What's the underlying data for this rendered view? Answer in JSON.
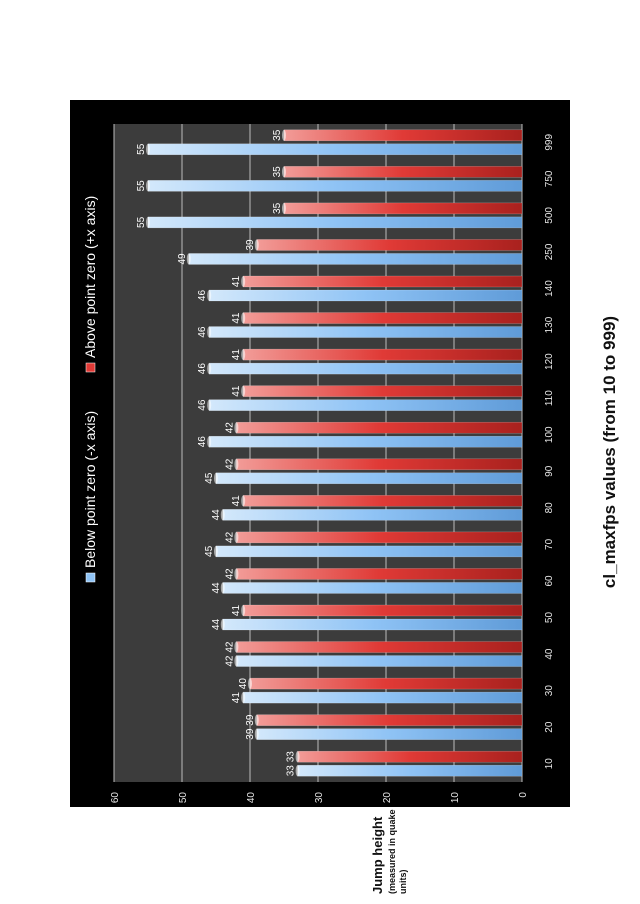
{
  "chart_data": {
    "type": "bar",
    "orientation": "horizontal-bars (page rotated 90 degrees)",
    "title": "cl_maxfps values (from 10 to 999)",
    "ylabel": "Jump height",
    "ylabel_note": "(measured in quake units)",
    "ylim": [
      0,
      60
    ],
    "yticks": [
      0,
      10,
      20,
      30,
      40,
      50,
      60
    ],
    "grid": true,
    "legend_position": "top",
    "categories": [
      "10",
      "20",
      "30",
      "40",
      "50",
      "60",
      "70",
      "80",
      "90",
      "100",
      "110",
      "120",
      "130",
      "140",
      "250",
      "500",
      "750",
      "999"
    ],
    "series": [
      {
        "name": "Below point zero (-x axis)",
        "color": "#8fc3f5",
        "values": [
          33,
          39,
          41,
          42,
          44,
          44,
          45,
          44,
          45,
          46,
          46,
          46,
          46,
          46,
          49,
          55,
          55,
          55
        ]
      },
      {
        "name": "Above point zero (+x axis)",
        "color": "#e03a36",
        "values": [
          33,
          39,
          40,
          42,
          41,
          42,
          42,
          41,
          42,
          42,
          41,
          41,
          41,
          41,
          39,
          35,
          35,
          35
        ]
      }
    ]
  }
}
